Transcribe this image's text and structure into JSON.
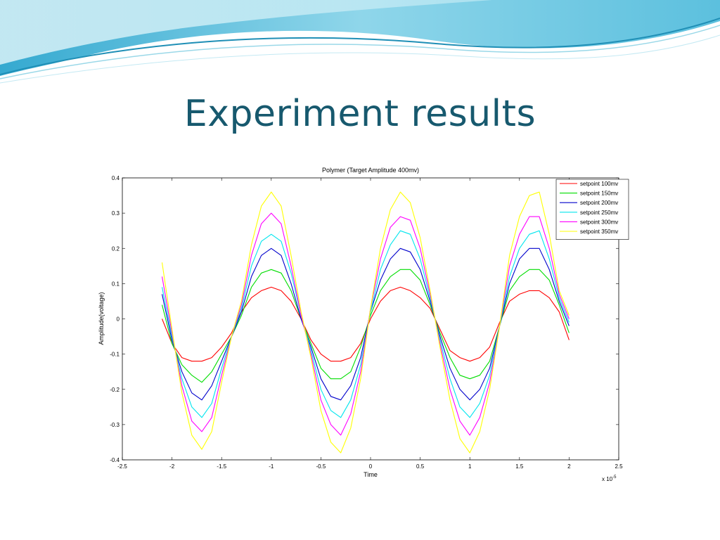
{
  "slide": {
    "title": "Experiment results",
    "theme_colors": {
      "title": "#17596e",
      "wave_dark": "#4fb3d3",
      "wave_light": "#bfe8f3"
    }
  },
  "chart_data": {
    "type": "line",
    "title": "Polymer (Target Amplitude 400mv)",
    "xlabel": "Time",
    "ylabel": "Amplitude(voltage)",
    "x_scale_label": "x 10",
    "x_scale_exponent": "-5",
    "xlim": [
      -2.5,
      2.5
    ],
    "ylim": [
      -0.4,
      0.4
    ],
    "x_ticks": [
      -2.5,
      -2,
      -1.5,
      -1,
      -0.5,
      0,
      0.5,
      1,
      1.5,
      2,
      2.5
    ],
    "x_tick_labels": [
      "-2.5",
      "-2",
      "-1.5",
      "-1",
      "-0.5",
      "0",
      "0.5",
      "1",
      "1.5",
      "2",
      "2.5"
    ],
    "y_ticks": [
      -0.4,
      -0.3,
      -0.2,
      -0.1,
      0,
      0.1,
      0.2,
      0.3,
      0.4
    ],
    "y_tick_labels": [
      "-0.4",
      "-0.3",
      "-0.2",
      "-0.1",
      "0",
      "0.1",
      "0.2",
      "0.3",
      "0.4"
    ],
    "grid": false,
    "legend_position": "top-right",
    "x": [
      -2.1,
      -2.0,
      -1.9,
      -1.8,
      -1.7,
      -1.6,
      -1.5,
      -1.4,
      -1.3,
      -1.2,
      -1.1,
      -1.0,
      -0.9,
      -0.8,
      -0.7,
      -0.6,
      -0.5,
      -0.4,
      -0.3,
      -0.2,
      -0.1,
      0.0,
      0.1,
      0.2,
      0.3,
      0.4,
      0.5,
      0.6,
      0.7,
      0.8,
      0.9,
      1.0,
      1.1,
      1.2,
      1.3,
      1.4,
      1.5,
      1.6,
      1.7,
      1.8,
      1.9,
      2.0
    ],
    "series": [
      {
        "name": "setpoint 100mv",
        "color": "#ff0000",
        "values": [
          0.0,
          -0.07,
          -0.11,
          -0.12,
          -0.12,
          -0.11,
          -0.08,
          -0.04,
          0.02,
          0.06,
          0.08,
          0.09,
          0.08,
          0.05,
          0.0,
          -0.06,
          -0.1,
          -0.12,
          -0.12,
          -0.11,
          -0.07,
          0.0,
          0.05,
          0.08,
          0.09,
          0.08,
          0.06,
          0.03,
          -0.03,
          -0.09,
          -0.11,
          -0.12,
          -0.11,
          -0.08,
          -0.01,
          0.05,
          0.07,
          0.08,
          0.08,
          0.06,
          0.02,
          -0.06
        ]
      },
      {
        "name": "setpoint 150mv",
        "color": "#00dd00",
        "values": [
          0.04,
          -0.07,
          -0.13,
          -0.16,
          -0.18,
          -0.15,
          -0.1,
          -0.05,
          0.01,
          0.09,
          0.13,
          0.14,
          0.13,
          0.08,
          0.0,
          -0.07,
          -0.14,
          -0.17,
          -0.17,
          -0.15,
          -0.08,
          0.01,
          0.08,
          0.12,
          0.14,
          0.14,
          0.11,
          0.04,
          -0.04,
          -0.11,
          -0.16,
          -0.17,
          -0.16,
          -0.12,
          -0.02,
          0.08,
          0.12,
          0.14,
          0.14,
          0.11,
          0.04,
          -0.04
        ]
      },
      {
        "name": "setpoint 200mv",
        "color": "#0000cc",
        "values": [
          0.07,
          -0.06,
          -0.15,
          -0.21,
          -0.23,
          -0.19,
          -0.12,
          -0.05,
          0.02,
          0.12,
          0.18,
          0.2,
          0.18,
          0.1,
          0.0,
          -0.08,
          -0.17,
          -0.22,
          -0.23,
          -0.19,
          -0.11,
          0.02,
          0.11,
          0.17,
          0.2,
          0.19,
          0.14,
          0.05,
          -0.05,
          -0.14,
          -0.2,
          -0.23,
          -0.2,
          -0.14,
          -0.02,
          0.1,
          0.17,
          0.2,
          0.2,
          0.14,
          0.05,
          -0.02
        ]
      },
      {
        "name": "setpoint 250mv",
        "color": "#00e5ee",
        "values": [
          0.09,
          -0.05,
          -0.17,
          -0.25,
          -0.28,
          -0.24,
          -0.14,
          -0.05,
          0.03,
          0.15,
          0.22,
          0.24,
          0.22,
          0.13,
          0.01,
          -0.09,
          -0.2,
          -0.26,
          -0.28,
          -0.23,
          -0.13,
          0.02,
          0.14,
          0.21,
          0.25,
          0.24,
          0.17,
          0.06,
          -0.06,
          -0.17,
          -0.25,
          -0.28,
          -0.24,
          -0.16,
          -0.02,
          0.12,
          0.2,
          0.24,
          0.25,
          0.17,
          0.06,
          -0.01
        ]
      },
      {
        "name": "setpoint 300mv",
        "color": "#ff00ff",
        "values": [
          0.12,
          -0.04,
          -0.19,
          -0.29,
          -0.32,
          -0.28,
          -0.16,
          -0.05,
          0.04,
          0.18,
          0.27,
          0.3,
          0.27,
          0.15,
          0.01,
          -0.1,
          -0.23,
          -0.3,
          -0.33,
          -0.27,
          -0.15,
          0.03,
          0.17,
          0.26,
          0.29,
          0.28,
          0.2,
          0.07,
          -0.07,
          -0.2,
          -0.29,
          -0.33,
          -0.28,
          -0.18,
          -0.02,
          0.15,
          0.24,
          0.29,
          0.29,
          0.2,
          0.07,
          0.0
        ]
      },
      {
        "name": "setpoint 350mv",
        "color": "#ffff00",
        "values": [
          0.16,
          -0.03,
          -0.21,
          -0.33,
          -0.37,
          -0.32,
          -0.18,
          -0.05,
          0.05,
          0.21,
          0.32,
          0.36,
          0.32,
          0.18,
          0.02,
          -0.11,
          -0.26,
          -0.35,
          -0.38,
          -0.31,
          -0.17,
          0.03,
          0.2,
          0.31,
          0.36,
          0.33,
          0.23,
          0.08,
          -0.08,
          -0.23,
          -0.34,
          -0.38,
          -0.32,
          -0.2,
          -0.02,
          0.18,
          0.29,
          0.35,
          0.36,
          0.24,
          0.08,
          0.01
        ]
      }
    ]
  }
}
